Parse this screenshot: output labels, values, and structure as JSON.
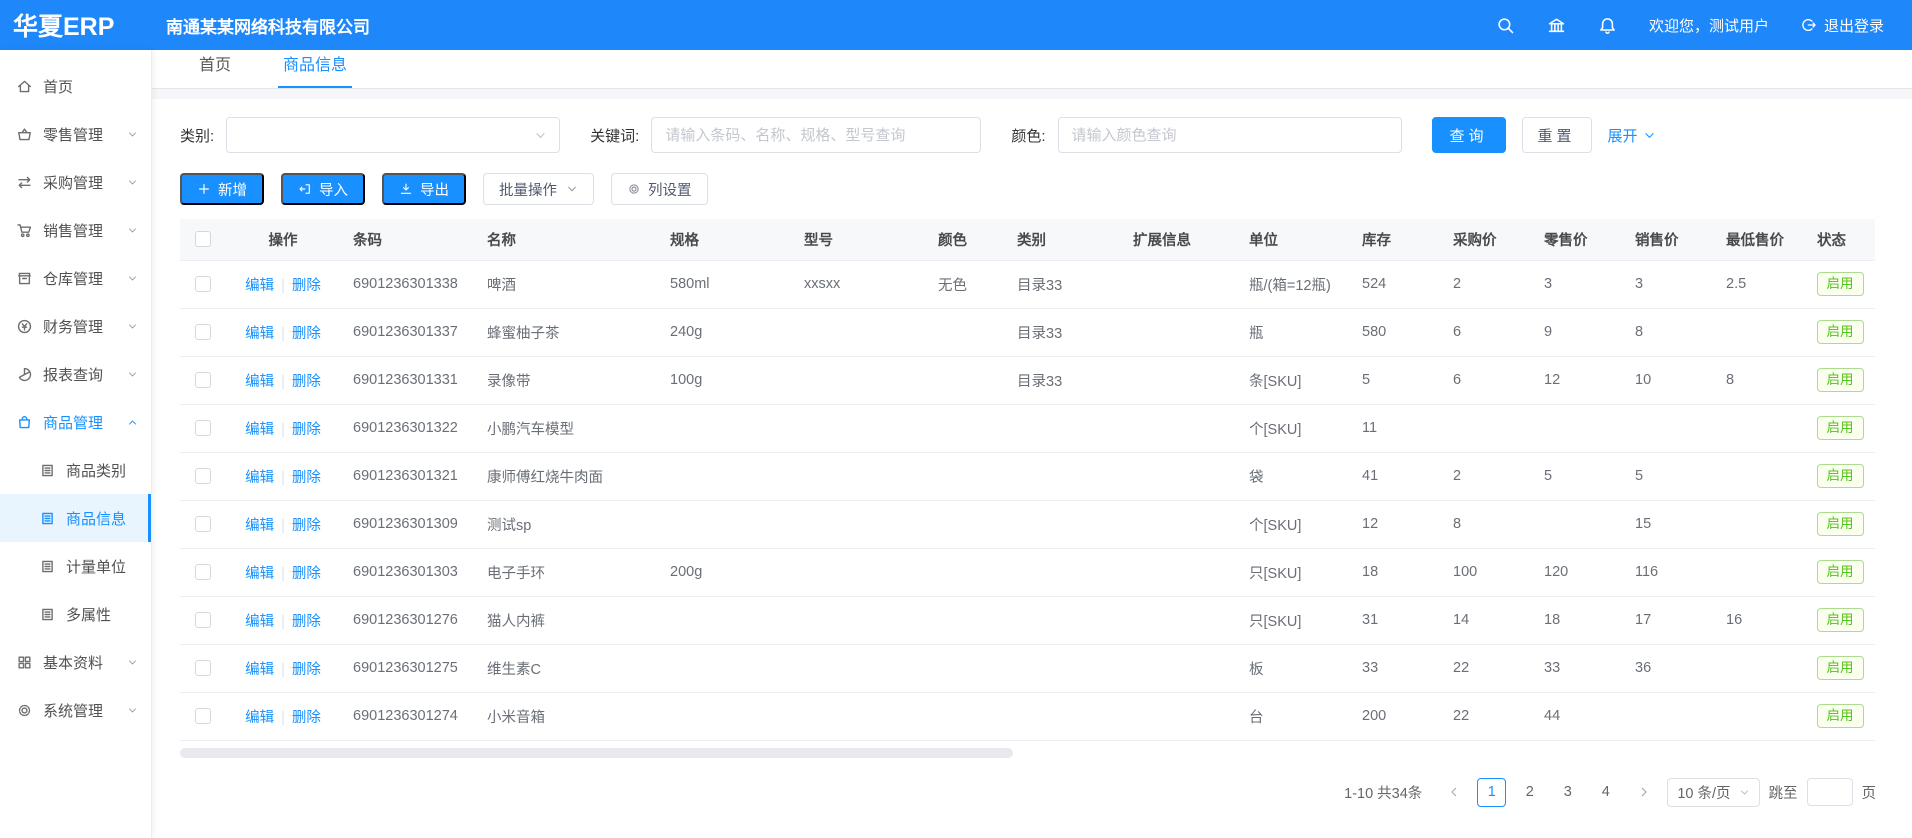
{
  "colors": {
    "topbar": "#1e87fa",
    "primary": "#1890ff",
    "sidebar_active_bg": "#e8f4fe",
    "status_green": "#52c41a",
    "status_green_border": "#a9dd8d"
  },
  "topbar": {
    "logo": "华夏ERP",
    "company": "南通某某网络科技有限公司",
    "icons": [
      "search-icon",
      "bank-icon",
      "bell-icon"
    ],
    "welcome": "欢迎您，测试用户",
    "logout_label": "退出登录"
  },
  "sidebar": {
    "items": [
      {
        "label": "首页",
        "icon": "home-icon"
      },
      {
        "label": "零售管理",
        "icon": "retail-icon",
        "chevron": "down"
      },
      {
        "label": "采购管理",
        "icon": "purchase-icon",
        "chevron": "down"
      },
      {
        "label": "销售管理",
        "icon": "cart-icon",
        "chevron": "down"
      },
      {
        "label": "仓库管理",
        "icon": "warehouse-icon",
        "chevron": "down"
      },
      {
        "label": "财务管理",
        "icon": "finance-icon",
        "chevron": "down"
      },
      {
        "label": "报表查询",
        "icon": "report-icon",
        "chevron": "down"
      },
      {
        "label": "商品管理",
        "icon": "bag-icon",
        "chevron": "up",
        "active": true
      },
      {
        "label": "商品类别",
        "icon": "doc-icon",
        "sub": true
      },
      {
        "label": "商品信息",
        "icon": "doc-icon",
        "sub": true,
        "selected": true
      },
      {
        "label": "计量单位",
        "icon": "doc-icon",
        "sub": true
      },
      {
        "label": "多属性",
        "icon": "doc-icon",
        "sub": true
      },
      {
        "label": "基本资料",
        "icon": "grid-icon",
        "chevron": "down"
      },
      {
        "label": "系统管理",
        "icon": "gear-icon",
        "chevron": "down"
      }
    ]
  },
  "tabs": [
    {
      "label": "首页"
    },
    {
      "label": "商品信息",
      "active": true
    }
  ],
  "filters": {
    "category_label": "类别:",
    "keyword_label": "关键词:",
    "keyword_placeholder": "请输入条码、名称、规格、型号查询",
    "color_label": "颜色:",
    "color_placeholder": "请输入颜色查询",
    "search_btn": "查询",
    "reset_btn": "重置",
    "expand_link": "展开"
  },
  "toolbar": {
    "add": "新增",
    "import": "导入",
    "export": "导出",
    "batch": "批量操作",
    "columns": "列设置"
  },
  "table": {
    "headers": [
      "操作",
      "条码",
      "名称",
      "规格",
      "型号",
      "颜色",
      "类别",
      "扩展信息",
      "单位",
      "库存",
      "采购价",
      "零售价",
      "销售价",
      "最低售价",
      "状态"
    ],
    "edit_label": "编辑",
    "delete_label": "删除",
    "rows": [
      {
        "barcode": "6901236301338",
        "name": "啤酒",
        "spec": "580ml",
        "model": "xxsxx",
        "color": "无色",
        "category": "目录33",
        "ext": "",
        "unit": "瓶/(箱=12瓶)",
        "stock": "524",
        "purchase": "2",
        "retail": "3",
        "sale": "3",
        "min": "2.5",
        "status": "启用"
      },
      {
        "barcode": "6901236301337",
        "name": "蜂蜜柚子茶",
        "spec": "240g",
        "model": "",
        "color": "",
        "category": "目录33",
        "ext": "",
        "unit": "瓶",
        "stock": "580",
        "purchase": "6",
        "retail": "9",
        "sale": "8",
        "min": "",
        "status": "启用"
      },
      {
        "barcode": "6901236301331",
        "name": "录像带",
        "spec": "100g",
        "model": "",
        "color": "",
        "category": "目录33",
        "ext": "",
        "unit": "条[SKU]",
        "stock": "5",
        "purchase": "6",
        "retail": "12",
        "sale": "10",
        "min": "8",
        "status": "启用"
      },
      {
        "barcode": "6901236301322",
        "name": "小鹏汽车模型",
        "spec": "",
        "model": "",
        "color": "",
        "category": "",
        "ext": "",
        "unit": "个[SKU]",
        "stock": "11",
        "purchase": "",
        "retail": "",
        "sale": "",
        "min": "",
        "status": "启用"
      },
      {
        "barcode": "6901236301321",
        "name": "康师傅红烧牛肉面",
        "spec": "",
        "model": "",
        "color": "",
        "category": "",
        "ext": "",
        "unit": "袋",
        "stock": "41",
        "purchase": "2",
        "retail": "5",
        "sale": "5",
        "min": "",
        "status": "启用"
      },
      {
        "barcode": "6901236301309",
        "name": "测试sp",
        "spec": "",
        "model": "",
        "color": "",
        "category": "",
        "ext": "",
        "unit": "个[SKU]",
        "stock": "12",
        "purchase": "8",
        "retail": "",
        "sale": "15",
        "min": "",
        "status": "启用"
      },
      {
        "barcode": "6901236301303",
        "name": "电子手环",
        "spec": "200g",
        "model": "",
        "color": "",
        "category": "",
        "ext": "",
        "unit": "只[SKU]",
        "stock": "18",
        "purchase": "100",
        "retail": "120",
        "sale": "116",
        "min": "",
        "status": "启用"
      },
      {
        "barcode": "6901236301276",
        "name": "猫人内裤",
        "spec": "",
        "model": "",
        "color": "",
        "category": "",
        "ext": "",
        "unit": "只[SKU]",
        "stock": "31",
        "purchase": "14",
        "retail": "18",
        "sale": "17",
        "min": "16",
        "status": "启用"
      },
      {
        "barcode": "6901236301275",
        "name": "维生素C",
        "spec": "",
        "model": "",
        "color": "",
        "category": "",
        "ext": "",
        "unit": "板",
        "stock": "33",
        "purchase": "22",
        "retail": "33",
        "sale": "36",
        "min": "",
        "status": "启用"
      },
      {
        "barcode": "6901236301274",
        "name": "小米音箱",
        "spec": "",
        "model": "",
        "color": "",
        "category": "",
        "ext": "",
        "unit": "台",
        "stock": "200",
        "purchase": "22",
        "retail": "44",
        "sale": "",
        "min": "",
        "status": "启用"
      }
    ]
  },
  "pagination": {
    "total_text": "1-10 共34条",
    "pages": [
      "1",
      "2",
      "3",
      "4"
    ],
    "current": "1",
    "size_text": "10 条/页",
    "jump_label": "跳至",
    "unit_label": "页"
  }
}
